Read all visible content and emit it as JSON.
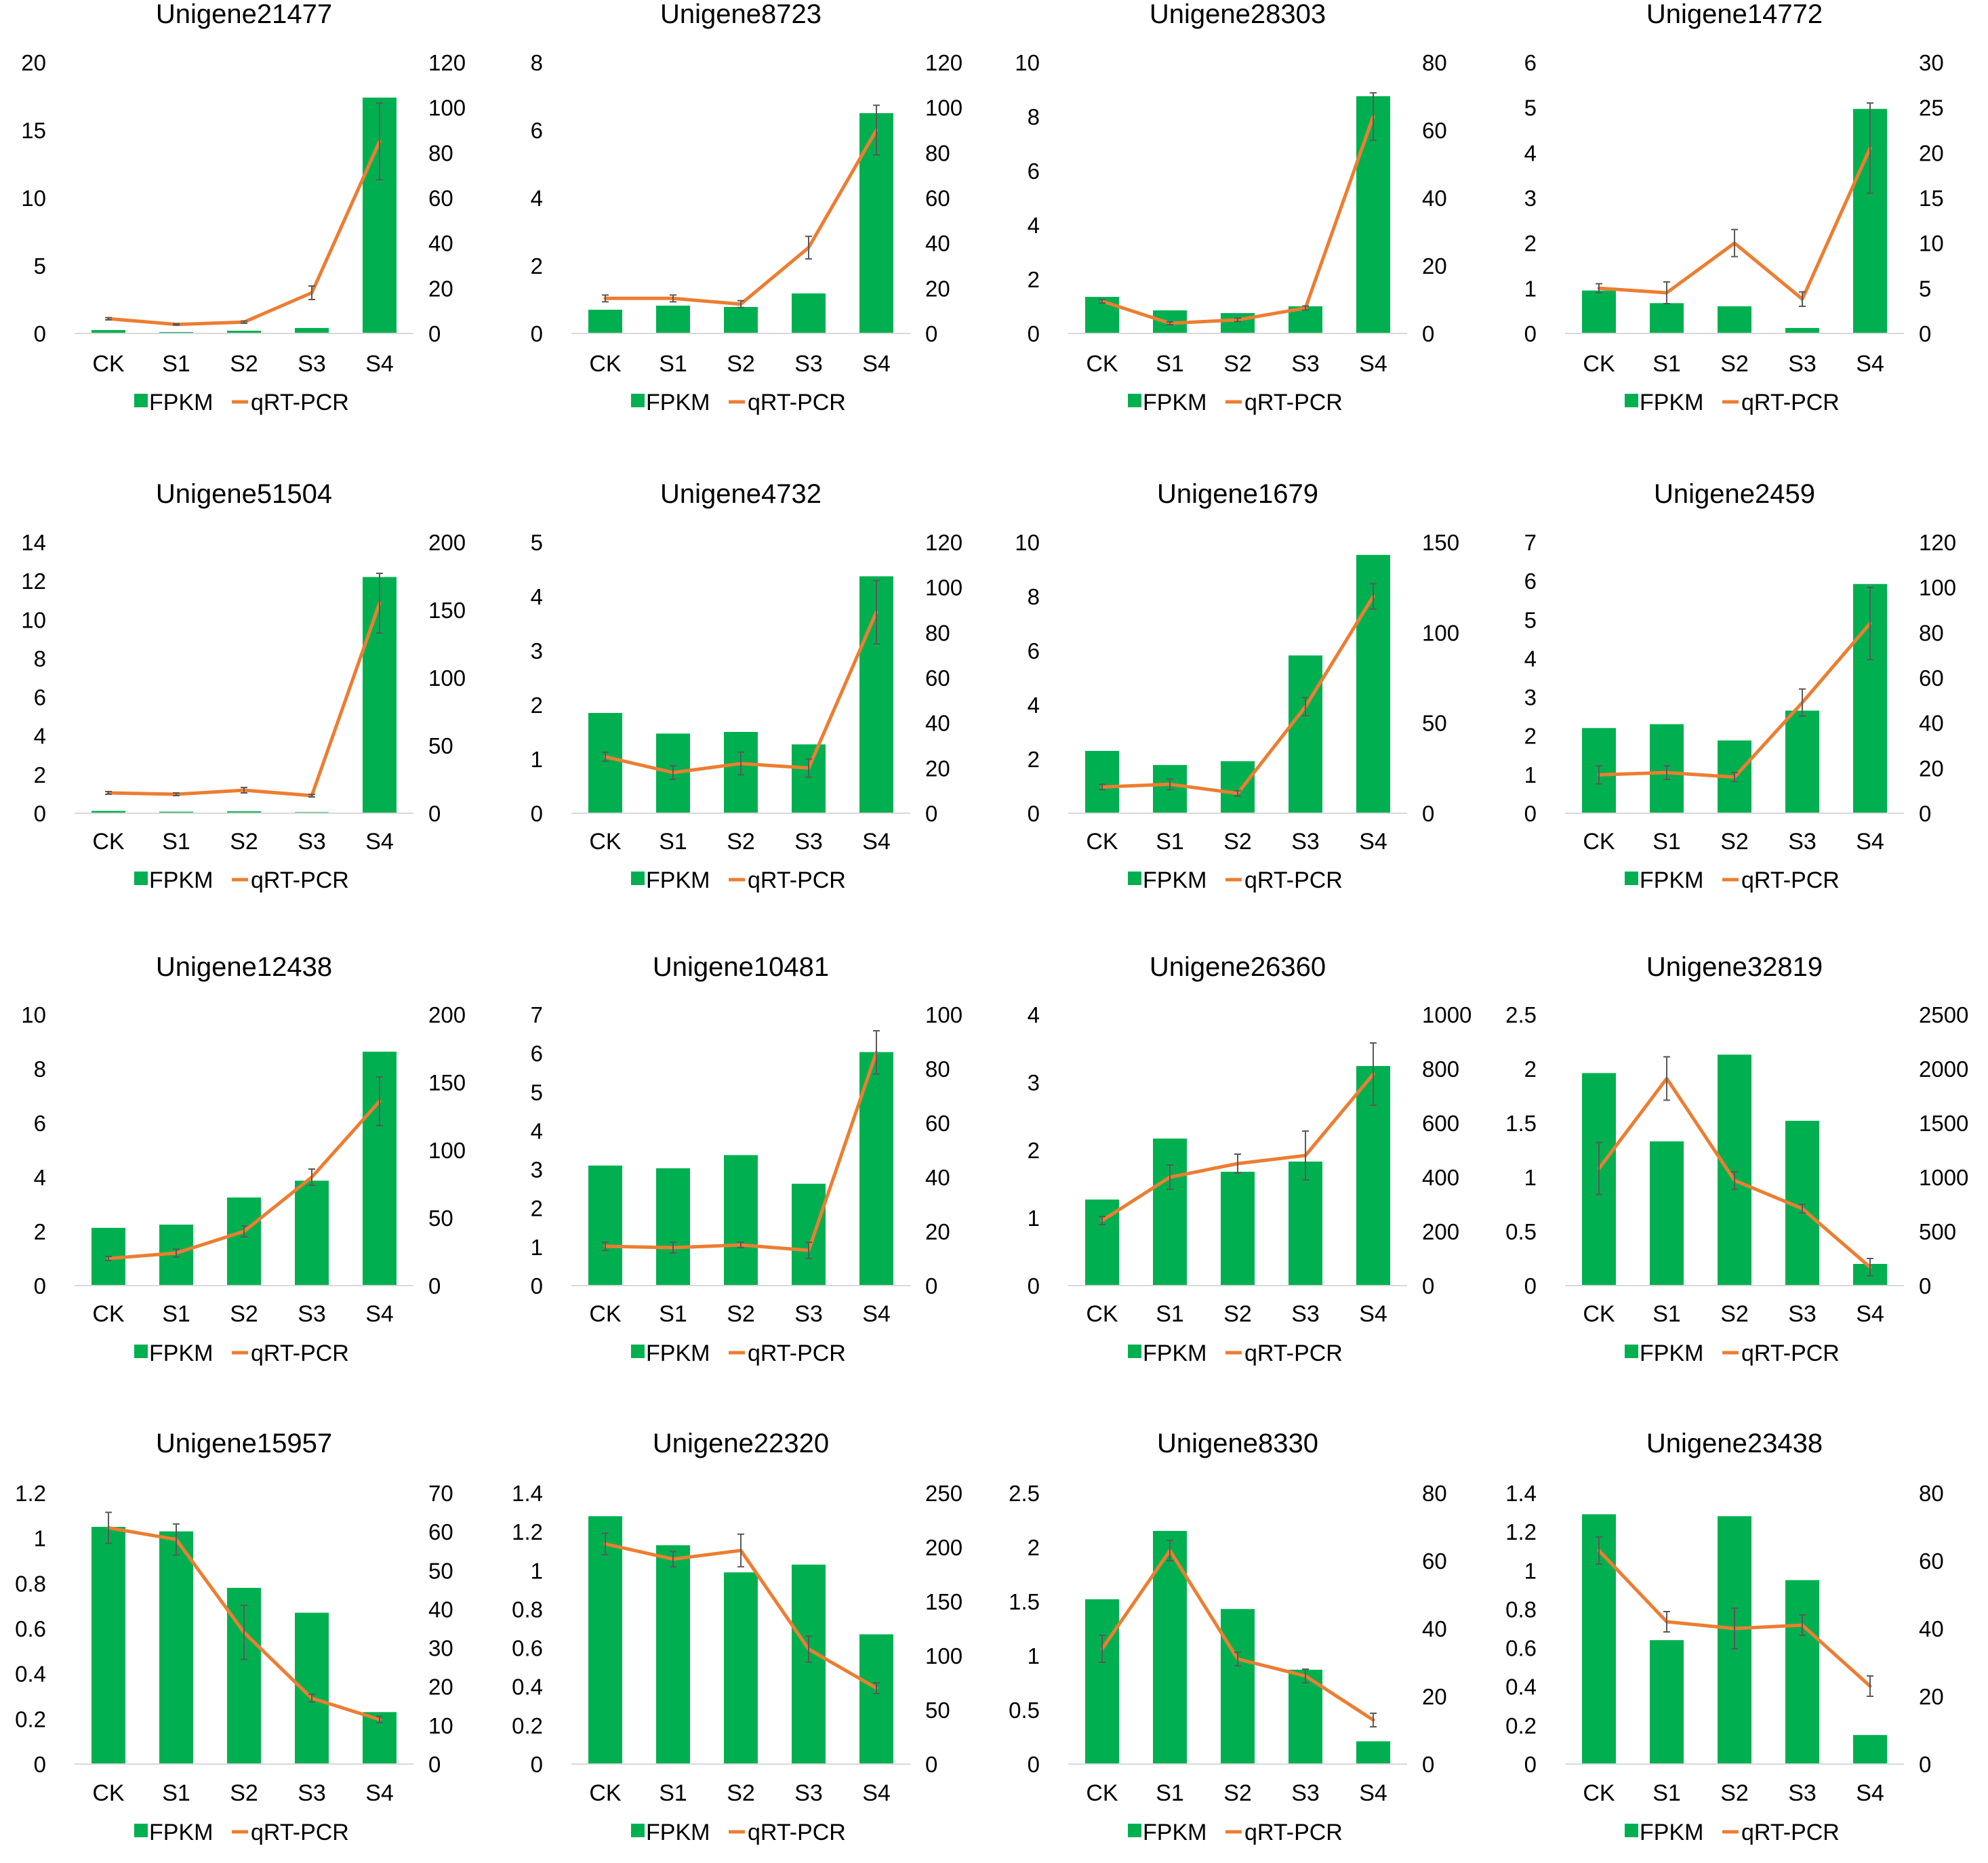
{
  "colors": {
    "bar": "#00b050",
    "line": "#ed7d31",
    "errorbar": "#595959",
    "axis": "#d9d9d9"
  },
  "legend": {
    "bar_label": "FPKM",
    "line_label": "qRT-PCR"
  },
  "chart_data": [
    {
      "type": "bar+line",
      "title": "Unigene21477",
      "categories": [
        "CK",
        "S1",
        "S2",
        "S3",
        "S4"
      ],
      "y_left": {
        "min": 0,
        "max": 20,
        "ticks": [
          "0",
          "5",
          "10",
          "15",
          "20"
        ]
      },
      "y_right": {
        "min": 0,
        "max": 120,
        "ticks": [
          "0",
          "20",
          "40",
          "60",
          "80",
          "100",
          "120"
        ]
      },
      "series": [
        {
          "name": "FPKM",
          "axis": "left",
          "values": [
            0.25,
            0.1,
            0.2,
            0.4,
            17.4
          ]
        },
        {
          "name": "qRT-PCR",
          "axis": "right",
          "values": [
            6.5,
            4,
            5,
            18,
            85
          ],
          "errors": [
            0.5,
            0.3,
            0.5,
            3,
            17
          ]
        }
      ]
    },
    {
      "type": "bar+line",
      "title": "Unigene8723",
      "categories": [
        "CK",
        "S1",
        "S2",
        "S3",
        "S4"
      ],
      "y_left": {
        "min": 0,
        "max": 8,
        "ticks": [
          "0",
          "2",
          "4",
          "6",
          "8"
        ]
      },
      "y_right": {
        "min": 0,
        "max": 120,
        "ticks": [
          "0",
          "20",
          "40",
          "60",
          "80",
          "100",
          "120"
        ]
      },
      "series": [
        {
          "name": "FPKM",
          "axis": "left",
          "values": [
            0.7,
            0.82,
            0.78,
            1.18,
            6.5
          ]
        },
        {
          "name": "qRT-PCR",
          "axis": "right",
          "values": [
            15.5,
            15.5,
            13,
            38,
            90
          ],
          "errors": [
            1.5,
            1.5,
            1.5,
            5,
            11
          ]
        }
      ]
    },
    {
      "type": "bar+line",
      "title": "Unigene28303",
      "categories": [
        "CK",
        "S1",
        "S2",
        "S3",
        "S4"
      ],
      "y_left": {
        "min": 0,
        "max": 10,
        "ticks": [
          "0",
          "2",
          "4",
          "6",
          "8",
          "10"
        ]
      },
      "y_right": {
        "min": 0,
        "max": 80,
        "ticks": [
          "0",
          "20",
          "40",
          "60",
          "80"
        ]
      },
      "series": [
        {
          "name": "FPKM",
          "axis": "left",
          "values": [
            1.35,
            0.85,
            0.75,
            1.0,
            8.75
          ]
        },
        {
          "name": "qRT-PCR",
          "axis": "right",
          "values": [
            9.5,
            3,
            4,
            7.5,
            64
          ],
          "errors": [
            0.5,
            0.4,
            0.5,
            0.6,
            7
          ]
        }
      ]
    },
    {
      "type": "bar+line",
      "title": "Unigene14772",
      "categories": [
        "CK",
        "S1",
        "S2",
        "S3",
        "S4"
      ],
      "y_left": {
        "min": 0,
        "max": 6,
        "ticks": [
          "0",
          "1",
          "2",
          "3",
          "4",
          "5",
          "6"
        ]
      },
      "y_right": {
        "min": 0,
        "max": 30,
        "ticks": [
          "0",
          "5",
          "10",
          "15",
          "20",
          "25",
          "30"
        ]
      },
      "series": [
        {
          "name": "FPKM",
          "axis": "left",
          "values": [
            0.95,
            0.67,
            0.6,
            0.12,
            4.97
          ]
        },
        {
          "name": "qRT-PCR",
          "axis": "right",
          "values": [
            5,
            4.5,
            10,
            3.8,
            20.5
          ],
          "errors": [
            0.5,
            1.2,
            1.5,
            0.8,
            5
          ]
        }
      ]
    },
    {
      "type": "bar+line",
      "title": "Unigene51504",
      "categories": [
        "CK",
        "S1",
        "S2",
        "S3",
        "S4"
      ],
      "y_left": {
        "min": 0,
        "max": 14,
        "ticks": [
          "0",
          "2",
          "4",
          "6",
          "8",
          "10",
          "12",
          "14"
        ]
      },
      "y_right": {
        "min": 0,
        "max": 200,
        "ticks": [
          "0",
          "50",
          "100",
          "150",
          "200"
        ]
      },
      "series": [
        {
          "name": "FPKM",
          "axis": "left",
          "values": [
            0.12,
            0.08,
            0.1,
            0.06,
            12.2
          ]
        },
        {
          "name": "qRT-PCR",
          "axis": "right",
          "values": [
            15,
            14,
            17,
            13,
            155
          ],
          "errors": [
            1,
            1,
            2,
            1,
            22
          ]
        }
      ]
    },
    {
      "type": "bar+line",
      "title": "Unigene4732",
      "categories": [
        "CK",
        "S1",
        "S2",
        "S3",
        "S4"
      ],
      "y_left": {
        "min": 0,
        "max": 5,
        "ticks": [
          "0",
          "1",
          "2",
          "3",
          "4",
          "5"
        ]
      },
      "y_right": {
        "min": 0,
        "max": 120,
        "ticks": [
          "0",
          "20",
          "40",
          "60",
          "80",
          "100",
          "120"
        ]
      },
      "series": [
        {
          "name": "FPKM",
          "axis": "left",
          "values": [
            1.85,
            1.47,
            1.5,
            1.27,
            4.37
          ]
        },
        {
          "name": "qRT-PCR",
          "axis": "right",
          "values": [
            25,
            18,
            22,
            20,
            89
          ],
          "errors": [
            2,
            3,
            5,
            4,
            14
          ]
        }
      ]
    },
    {
      "type": "bar+line",
      "title": "Unigene1679",
      "categories": [
        "CK",
        "S1",
        "S2",
        "S3",
        "S4"
      ],
      "y_left": {
        "min": 0,
        "max": 10,
        "ticks": [
          "0",
          "2",
          "4",
          "6",
          "8",
          "10"
        ]
      },
      "y_right": {
        "min": 0,
        "max": 150,
        "ticks": [
          "0",
          "50",
          "100",
          "150"
        ]
      },
      "series": [
        {
          "name": "FPKM",
          "axis": "left",
          "values": [
            2.3,
            1.78,
            1.92,
            5.82,
            9.53
          ]
        },
        {
          "name": "qRT-PCR",
          "axis": "right",
          "values": [
            14.5,
            16,
            11,
            59,
            120
          ],
          "errors": [
            1.5,
            3,
            1.5,
            5,
            7
          ]
        }
      ]
    },
    {
      "type": "bar+line",
      "title": "Unigene2459",
      "categories": [
        "CK",
        "S1",
        "S2",
        "S3",
        "S4"
      ],
      "y_left": {
        "min": 0,
        "max": 7,
        "ticks": [
          "0",
          "1",
          "2",
          "3",
          "4",
          "5",
          "6",
          "7"
        ]
      },
      "y_right": {
        "min": 0,
        "max": 120,
        "ticks": [
          "0",
          "20",
          "40",
          "60",
          "80",
          "100",
          "120"
        ]
      },
      "series": [
        {
          "name": "FPKM",
          "axis": "left",
          "values": [
            2.2,
            2.3,
            1.88,
            2.65,
            5.92
          ]
        },
        {
          "name": "qRT-PCR",
          "axis": "right",
          "values": [
            17,
            18,
            16,
            49,
            84
          ],
          "errors": [
            4,
            3,
            2,
            6,
            16
          ]
        }
      ]
    },
    {
      "type": "bar+line",
      "title": "Unigene12438",
      "categories": [
        "CK",
        "S1",
        "S2",
        "S3",
        "S4"
      ],
      "y_left": {
        "min": 0,
        "max": 10,
        "ticks": [
          "0",
          "2",
          "4",
          "6",
          "8",
          "10"
        ]
      },
      "y_right": {
        "min": 0,
        "max": 200,
        "ticks": [
          "0",
          "50",
          "100",
          "150",
          "200"
        ]
      },
      "series": [
        {
          "name": "FPKM",
          "axis": "left",
          "values": [
            2.13,
            2.25,
            3.25,
            3.87,
            8.63
          ]
        },
        {
          "name": "qRT-PCR",
          "axis": "right",
          "values": [
            20,
            24,
            40,
            80,
            136
          ],
          "errors": [
            1.5,
            3,
            4,
            6,
            18
          ]
        }
      ]
    },
    {
      "type": "bar+line",
      "title": "Unigene10481",
      "categories": [
        "CK",
        "S1",
        "S2",
        "S3",
        "S4"
      ],
      "y_left": {
        "min": 0,
        "max": 7,
        "ticks": [
          "0",
          "1",
          "2",
          "3",
          "4",
          "5",
          "6",
          "7"
        ]
      },
      "y_right": {
        "min": 0,
        "max": 100,
        "ticks": [
          "0",
          "20",
          "40",
          "60",
          "80",
          "100"
        ]
      },
      "series": [
        {
          "name": "FPKM",
          "axis": "left",
          "values": [
            3.1,
            3.03,
            3.37,
            2.63,
            6.03
          ]
        },
        {
          "name": "qRT-PCR",
          "axis": "right",
          "values": [
            14.5,
            14,
            15,
            13,
            86
          ],
          "errors": [
            1.5,
            2,
            1,
            3,
            8
          ]
        }
      ]
    },
    {
      "type": "bar+line",
      "title": "Unigene26360",
      "categories": [
        "CK",
        "S1",
        "S2",
        "S3",
        "S4"
      ],
      "y_left": {
        "min": 0,
        "max": 4,
        "ticks": [
          "0",
          "1",
          "2",
          "3",
          "4"
        ]
      },
      "y_right": {
        "min": 0,
        "max": 1000,
        "ticks": [
          "0",
          "200",
          "400",
          "600",
          "800",
          "1000"
        ]
      },
      "series": [
        {
          "name": "FPKM",
          "axis": "left",
          "values": [
            1.27,
            2.17,
            1.68,
            1.83,
            3.24
          ]
        },
        {
          "name": "qRT-PCR",
          "axis": "right",
          "values": [
            240,
            400,
            450,
            480,
            780
          ],
          "errors": [
            15,
            45,
            35,
            90,
            115
          ]
        }
      ]
    },
    {
      "type": "bar+line",
      "title": "Unigene32819",
      "categories": [
        "CK",
        "S1",
        "S2",
        "S3",
        "S4"
      ],
      "y_left": {
        "min": 0,
        "max": 2.5,
        "ticks": [
          "0",
          "0.5",
          "1",
          "1.5",
          "2",
          "2.5"
        ]
      },
      "y_right": {
        "min": 0,
        "max": 2500,
        "ticks": [
          "0",
          "500",
          "1000",
          "1500",
          "2000",
          "2500"
        ]
      },
      "series": [
        {
          "name": "FPKM",
          "axis": "left",
          "values": [
            1.96,
            1.33,
            2.13,
            1.52,
            0.2
          ]
        },
        {
          "name": "qRT-PCR",
          "axis": "right",
          "values": [
            1080,
            1910,
            970,
            710,
            170
          ],
          "errors": [
            240,
            200,
            80,
            40,
            80
          ]
        }
      ]
    },
    {
      "type": "bar+line",
      "title": "Unigene15957",
      "categories": [
        "CK",
        "S1",
        "S2",
        "S3",
        "S4"
      ],
      "y_left": {
        "min": 0,
        "max": 1.2,
        "ticks": [
          "0",
          "0.2",
          "0.4",
          "0.6",
          "0.8",
          "1",
          "1.2"
        ]
      },
      "y_right": {
        "min": 0,
        "max": 70,
        "ticks": [
          "0",
          "10",
          "20",
          "30",
          "40",
          "50",
          "60",
          "70"
        ]
      },
      "series": [
        {
          "name": "FPKM",
          "axis": "left",
          "values": [
            1.05,
            1.03,
            0.78,
            0.67,
            0.23
          ]
        },
        {
          "name": "qRT-PCR",
          "axis": "right",
          "values": [
            61,
            58,
            34,
            17,
            11.5
          ],
          "errors": [
            4,
            4,
            7,
            1,
            0.8
          ]
        }
      ]
    },
    {
      "type": "bar+line",
      "title": "Unigene22320",
      "categories": [
        "CK",
        "S1",
        "S2",
        "S3",
        "S4"
      ],
      "y_left": {
        "min": 0,
        "max": 1.4,
        "ticks": [
          "0",
          "0.2",
          "0.4",
          "0.6",
          "0.8",
          "1",
          "1.2",
          "1.4"
        ]
      },
      "y_right": {
        "min": 0,
        "max": 250,
        "ticks": [
          "0",
          "50",
          "100",
          "150",
          "200",
          "250"
        ]
      },
      "series": [
        {
          "name": "FPKM",
          "axis": "left",
          "values": [
            1.28,
            1.13,
            0.99,
            1.03,
            0.67
          ]
        },
        {
          "name": "qRT-PCR",
          "axis": "right",
          "values": [
            203,
            189,
            197,
            106,
            70
          ],
          "errors": [
            10,
            7,
            15,
            12,
            5
          ]
        }
      ]
    },
    {
      "type": "bar+line",
      "title": "Unigene8330",
      "categories": [
        "CK",
        "S1",
        "S2",
        "S3",
        "S4"
      ],
      "y_left": {
        "min": 0,
        "max": 2.5,
        "ticks": [
          "0",
          "0.5",
          "1",
          "1.5",
          "2",
          "2.5"
        ]
      },
      "y_right": {
        "min": 0,
        "max": 80,
        "ticks": [
          "0",
          "20",
          "40",
          "60",
          "80"
        ]
      },
      "series": [
        {
          "name": "FPKM",
          "axis": "left",
          "values": [
            1.52,
            2.15,
            1.43,
            0.87,
            0.21
          ]
        },
        {
          "name": "qRT-PCR",
          "axis": "right",
          "values": [
            34,
            63,
            31,
            26,
            13
          ],
          "errors": [
            4,
            3,
            2,
            2,
            2
          ]
        }
      ]
    },
    {
      "type": "bar+line",
      "title": "Unigene23438",
      "categories": [
        "CK",
        "S1",
        "S2",
        "S3",
        "S4"
      ],
      "y_left": {
        "min": 0,
        "max": 1.4,
        "ticks": [
          "0",
          "0.2",
          "0.4",
          "0.6",
          "0.8",
          "1",
          "1.2",
          "1.4"
        ]
      },
      "y_right": {
        "min": 0,
        "max": 80,
        "ticks": [
          "0",
          "20",
          "40",
          "60",
          "80"
        ]
      },
      "series": [
        {
          "name": "FPKM",
          "axis": "left",
          "values": [
            1.29,
            0.64,
            1.28,
            0.95,
            0.15
          ]
        },
        {
          "name": "qRT-PCR",
          "axis": "right",
          "values": [
            63,
            42,
            40,
            41,
            23
          ],
          "errors": [
            4,
            3,
            6,
            3,
            3
          ]
        }
      ]
    }
  ]
}
